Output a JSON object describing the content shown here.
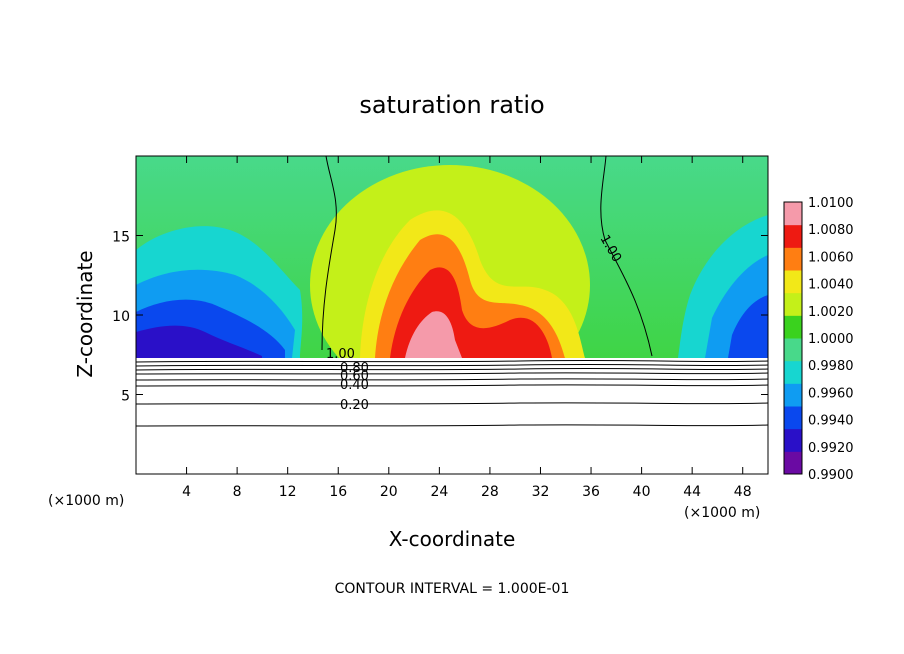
{
  "chart_data": {
    "type": "heatmap",
    "title": "saturation ratio",
    "xlabel": "X-coordinate",
    "ylabel": "Z-coordinate",
    "x_unit": "(×1000 m)",
    "z_unit": "(×1000 m)",
    "xlim": [
      0,
      50
    ],
    "ylim": [
      0,
      20
    ],
    "x_ticks": [
      4,
      8,
      12,
      16,
      20,
      24,
      28,
      32,
      36,
      40,
      44,
      48
    ],
    "y_ticks": [
      5,
      10,
      15
    ],
    "colorbar": {
      "levels": [
        "0.9900",
        "0.9920",
        "0.9940",
        "0.9960",
        "0.9980",
        "1.0000",
        "1.0020",
        "1.0040",
        "1.0060",
        "1.0080",
        "1.0100"
      ],
      "colors": [
        "#6a0aa3",
        "#2a10c8",
        "#0a48ee",
        "#0f9cf2",
        "#17d6d0",
        "#48d98a",
        "#3ad21e",
        "#c4f019",
        "#f2e818",
        "#ff7e12",
        "#ee1a12",
        "#f59aaa"
      ]
    },
    "contour_labels": [
      "1.00",
      "1.00",
      "0.80",
      "0.60",
      "0.40",
      "0.20"
    ],
    "footnote": "CONTOUR INTERVAL = 1.000E-01"
  },
  "icons": {
    "colorbar": "colorbar-legend"
  }
}
